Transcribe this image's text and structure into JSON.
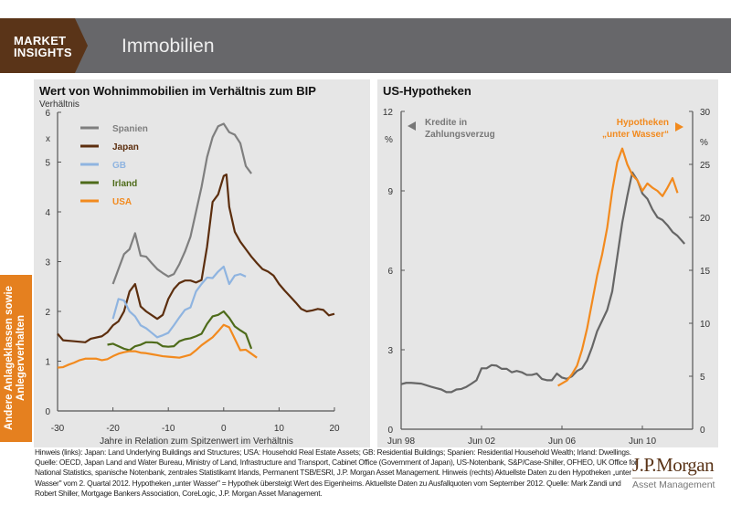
{
  "header": {
    "brand_line1": "MARKET",
    "brand_line2": "INSIGHTS",
    "title": "Immobilien"
  },
  "sidebar": {
    "line1": "Andere Anlageklassen sowie",
    "line2": "Anlegerverhalten"
  },
  "colors": {
    "brand": "#5a3418",
    "header": "#67676a",
    "accent": "#e5801f",
    "Spanien": "#7f7f7f",
    "Japan": "#5c2e0e",
    "GB": "#8fb4e0",
    "Irland": "#4e6b1a",
    "USA": "#f28a1e",
    "delinquency": "#666666",
    "underwater": "#f28a1e"
  },
  "chart_data": [
    {
      "type": "line",
      "title": "Wert von Wohnimmobilien im Verhältnis zum BIP",
      "ylabel": "Verhältnis",
      "yunit": "x",
      "xlabel": "Jahre in Relation zum Spitzenwert im Verhältnis",
      "xlim": [
        -30,
        20
      ],
      "ylim": [
        0,
        6
      ],
      "xticks": [
        -30,
        -20,
        -10,
        0,
        10,
        20
      ],
      "yticks": [
        0,
        1,
        2,
        3,
        4,
        5,
        6
      ],
      "legend": "top-left",
      "grid": false,
      "series": [
        {
          "name": "Spanien",
          "x": [
            -20,
            -19,
            -18,
            -17,
            -16,
            -15,
            -14,
            -13,
            -12,
            -11,
            -10,
            -9,
            -8,
            -7,
            -6,
            -5,
            -4,
            -3,
            -2,
            -1,
            0,
            1,
            2,
            3,
            4,
            5
          ],
          "y": [
            2.55,
            2.85,
            3.15,
            3.25,
            3.57,
            3.12,
            3.1,
            2.97,
            2.85,
            2.77,
            2.7,
            2.75,
            2.95,
            3.2,
            3.5,
            4.0,
            4.5,
            5.1,
            5.5,
            5.72,
            5.77,
            5.6,
            5.55,
            5.38,
            4.92,
            4.77
          ]
        },
        {
          "name": "Japan",
          "x": [
            -30,
            -29,
            -27,
            -25,
            -24,
            -22,
            -21,
            -20,
            -19,
            -18,
            -17,
            -16,
            -15,
            -14,
            -12,
            -11,
            -10,
            -9,
            -8,
            -7,
            -6,
            -5,
            -4,
            -3,
            -2,
            -1,
            0,
            0.5,
            1,
            2,
            3,
            4,
            5,
            6,
            7,
            8,
            9,
            10,
            11,
            12,
            13,
            14,
            15,
            16,
            17,
            18,
            19,
            20
          ],
          "y": [
            1.55,
            1.42,
            1.4,
            1.38,
            1.45,
            1.5,
            1.58,
            1.72,
            1.8,
            2.0,
            2.4,
            2.55,
            2.1,
            2.0,
            1.85,
            1.93,
            2.25,
            2.45,
            2.57,
            2.62,
            2.62,
            2.58,
            2.63,
            3.3,
            4.2,
            4.35,
            4.72,
            4.75,
            4.1,
            3.6,
            3.4,
            3.25,
            3.1,
            2.97,
            2.85,
            2.8,
            2.72,
            2.55,
            2.42,
            2.3,
            2.18,
            2.05,
            2.0,
            2.02,
            2.05,
            2.03,
            1.92,
            1.95
          ]
        },
        {
          "name": "GB",
          "x": [
            -20,
            -19,
            -18,
            -17,
            -16,
            -15,
            -14,
            -13,
            -12,
            -11,
            -10,
            -9,
            -8,
            -7,
            -6,
            -5,
            -4,
            -3,
            -2,
            -1,
            0,
            1,
            2,
            3,
            4
          ],
          "y": [
            1.85,
            2.25,
            2.22,
            2.0,
            1.9,
            1.72,
            1.66,
            1.57,
            1.48,
            1.52,
            1.57,
            1.72,
            1.88,
            2.03,
            2.08,
            2.4,
            2.55,
            2.68,
            2.67,
            2.8,
            2.9,
            2.55,
            2.72,
            2.75,
            2.7
          ]
        },
        {
          "name": "Irland",
          "x": [
            -21,
            -20,
            -19,
            -18,
            -17,
            -16,
            -15,
            -14,
            -13,
            -12,
            -11,
            -10,
            -9,
            -8,
            -7,
            -6,
            -5,
            -4,
            -3,
            -2,
            -1,
            0,
            1,
            2,
            3,
            4,
            5
          ],
          "y": [
            1.33,
            1.35,
            1.3,
            1.25,
            1.22,
            1.3,
            1.33,
            1.38,
            1.38,
            1.37,
            1.3,
            1.29,
            1.3,
            1.4,
            1.44,
            1.46,
            1.5,
            1.55,
            1.75,
            1.9,
            1.93,
            2.0,
            1.87,
            1.7,
            1.62,
            1.55,
            1.25
          ]
        },
        {
          "name": "USA",
          "x": [
            -30,
            -29,
            -28,
            -27,
            -26,
            -25,
            -24,
            -23,
            -22,
            -21,
            -20,
            -19,
            -18,
            -17,
            -16,
            -15,
            -14,
            -13,
            -12,
            -11,
            -10,
            -9,
            -8,
            -7,
            -6,
            -5,
            -4,
            -3,
            -2,
            -1,
            0,
            1,
            2,
            3,
            4,
            5,
            6
          ],
          "y": [
            0.87,
            0.88,
            0.93,
            0.97,
            1.02,
            1.05,
            1.05,
            1.05,
            1.02,
            1.04,
            1.1,
            1.15,
            1.18,
            1.2,
            1.2,
            1.17,
            1.16,
            1.14,
            1.12,
            1.1,
            1.09,
            1.08,
            1.07,
            1.1,
            1.13,
            1.22,
            1.32,
            1.4,
            1.48,
            1.6,
            1.73,
            1.68,
            1.45,
            1.22,
            1.23,
            1.15,
            1.07
          ]
        }
      ]
    },
    {
      "type": "line",
      "title": "US-Hypotheken",
      "ylabel_left": "%",
      "ylabel_right": "%",
      "ylim_left": [
        0,
        12
      ],
      "ylim_right": [
        0,
        30
      ],
      "yticks_left": [
        0,
        3,
        6,
        9,
        12
      ],
      "yticks_right": [
        0,
        5,
        10,
        15,
        20,
        25,
        30
      ],
      "xlim": [
        1998.5,
        2013.0
      ],
      "xticks": [
        {
          "value": 1998.5,
          "label": "Jun 98"
        },
        {
          "value": 2002.5,
          "label": "Jun 02"
        },
        {
          "value": 2006.5,
          "label": "Jun 06"
        },
        {
          "value": 2010.5,
          "label": "Jun 10"
        }
      ],
      "grid": false,
      "annotations": {
        "left_line1": "Kredite in",
        "left_line2": "Zahlungsverzug",
        "right_line1": "Hypotheken",
        "right_line2": "„unter Wasser“"
      },
      "series": [
        {
          "name": "Kredite in Zahlungsverzug",
          "axis": "left",
          "x": [
            1998.5,
            1998.75,
            1999,
            1999.5,
            2000,
            2000.25,
            2000.5,
            2000.75,
            2001,
            2001.25,
            2001.5,
            2001.75,
            2002,
            2002.25,
            2002.5,
            2002.75,
            2003,
            2003.25,
            2003.5,
            2003.75,
            2004,
            2004.25,
            2004.5,
            2004.75,
            2005,
            2005.25,
            2005.5,
            2005.75,
            2006,
            2006.25,
            2006.5,
            2006.75,
            2007,
            2007.25,
            2007.5,
            2007.75,
            2008,
            2008.25,
            2008.5,
            2008.75,
            2009,
            2009.25,
            2009.5,
            2009.75,
            2010,
            2010.25,
            2010.5,
            2010.75,
            2011,
            2011.25,
            2011.5,
            2011.75,
            2012,
            2012.25,
            2012.6
          ],
          "y": [
            1.7,
            1.75,
            1.75,
            1.72,
            1.6,
            1.55,
            1.5,
            1.4,
            1.4,
            1.5,
            1.52,
            1.6,
            1.72,
            1.85,
            2.3,
            2.3,
            2.42,
            2.4,
            2.28,
            2.28,
            2.15,
            2.2,
            2.15,
            2.05,
            2.05,
            2.1,
            1.9,
            1.85,
            1.85,
            2.1,
            1.95,
            1.9,
            2.0,
            2.2,
            2.3,
            2.6,
            3.1,
            3.7,
            4.1,
            4.5,
            5.2,
            6.5,
            7.8,
            8.8,
            9.7,
            9.4,
            8.9,
            8.7,
            8.3,
            8.0,
            7.9,
            7.7,
            7.45,
            7.3,
            7.0
          ]
        },
        {
          "name": "Hypotheken „unter Wasser“",
          "axis": "right",
          "x": [
            2006.3,
            2006.75,
            2007.0,
            2007.25,
            2007.5,
            2007.75,
            2008.0,
            2008.25,
            2008.5,
            2008.75,
            2009.0,
            2009.25,
            2009.5,
            2009.75,
            2010.0,
            2010.25,
            2010.5,
            2010.75,
            2011.0,
            2011.25,
            2011.5,
            2011.75,
            2012.0,
            2012.25
          ],
          "y": [
            4.1,
            4.6,
            5.2,
            6.0,
            7.5,
            9.5,
            12,
            14.5,
            16.5,
            19,
            22.5,
            25.2,
            26.5,
            25,
            24,
            23.5,
            22.5,
            23.2,
            22.8,
            22.5,
            22.0,
            22.8,
            23.7,
            22.3
          ]
        }
      ]
    }
  ],
  "footer": {
    "note": "Hinweis (links):  Japan: Land Underlying Buildings and Structures; USA: Household Real Estate Assets; GB: Residential Buildings; Spanien: Residential Household Wealth; Irland: Dwellings. Quelle: OECD, Japan Land and Water Bureau, Ministry of Land, Infrastructure and Transport, Cabinet Office (Government of Japan), US-Notenbank, S&P/Case-Shiller, OFHEO, UK Office for National Statistics, spanische Notenbank, zentrales Statistikamt Irlands, Permanent TSB/ESRI, J.P. Morgan Asset Management. Hinweis (rechts) Aktuellste Daten zu den Hypotheken „unter Wasser\" vom 2. Quartal 2012. Hypotheken „unter Wasser\" = Hypothek übersteigt Wert des Eigenheims. Aktuellste Daten zu Ausfallquoten vom September 2012. Quelle: Mark Zandi und Robert Shiller, Mortgage Bankers Association, CoreLogic, J.P. Morgan Asset Management."
  },
  "logo": {
    "name": "J.P.Morgan",
    "sub": "Asset Management"
  }
}
